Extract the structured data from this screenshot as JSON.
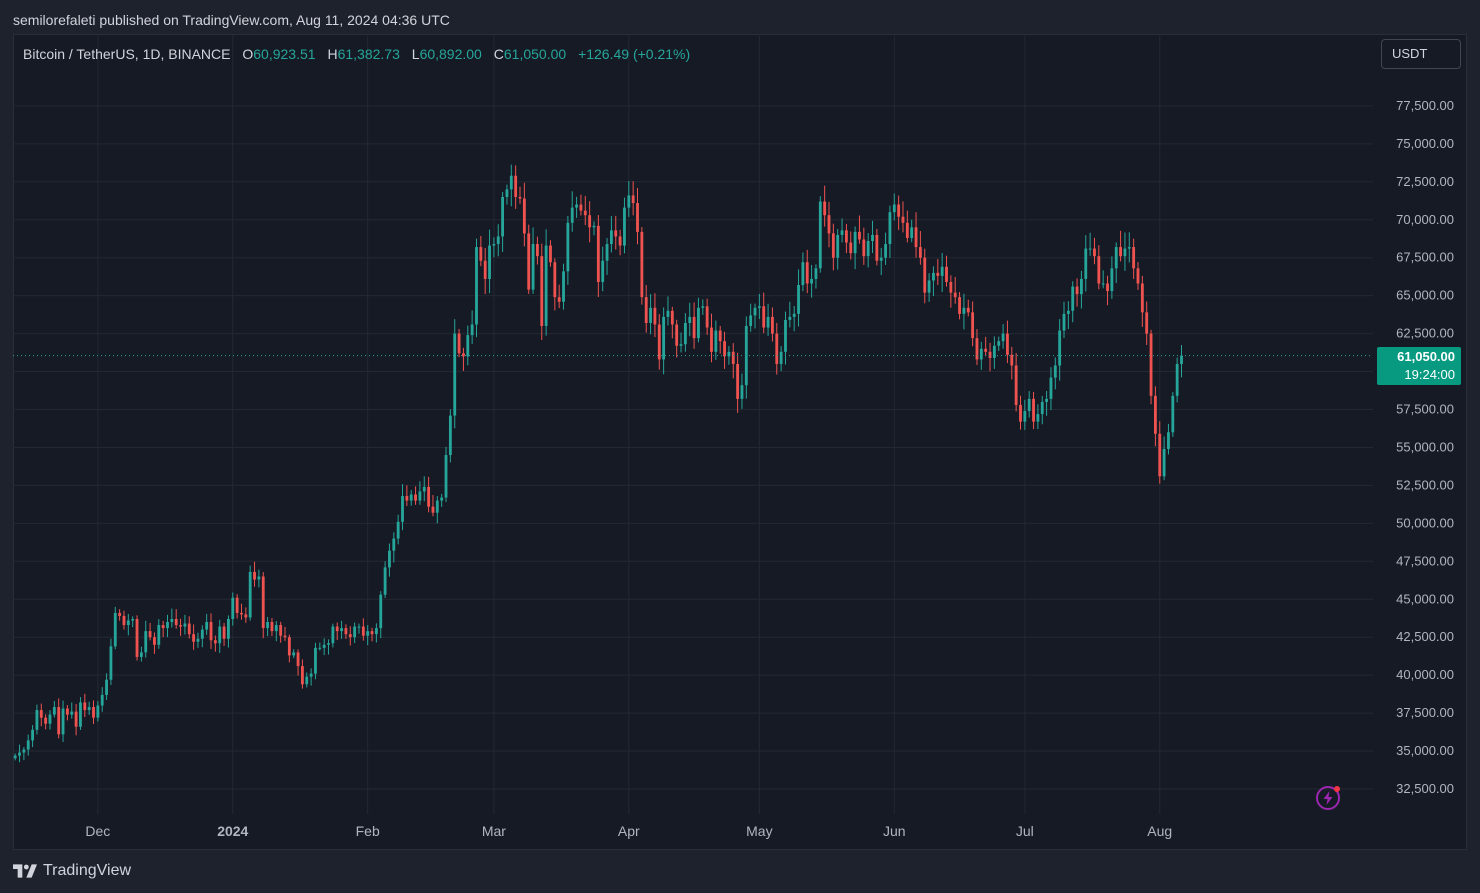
{
  "publisher_line": "semilorefaleti published on TradingView.com, Aug 11, 2024 04:36 UTC",
  "legend": {
    "symbol": "Bitcoin / TetherUS, 1D, BINANCE",
    "open_label": "O",
    "open": "60,923.51",
    "high_label": "H",
    "high": "61,382.73",
    "low_label": "L",
    "low": "60,892.00",
    "close_label": "C",
    "close": "61,050.00",
    "change": "+126.49 (+0.21%)"
  },
  "currency_button": "USDT",
  "last_price": {
    "price": "61,050.00",
    "countdown": "19:24:00",
    "color": "#089981"
  },
  "footer": {
    "brand": "TradingView",
    "logo_icon": "tradingview-logo-icon"
  },
  "badge_icon": "lightning-bolt-icon",
  "colors": {
    "up": "#26a69a",
    "down": "#ef5350",
    "background": "#161a25",
    "grid": "#242833",
    "text": "#b2b5be"
  },
  "chart_data": {
    "type": "candlestick",
    "title": "Bitcoin / TetherUS, 1D, BINANCE",
    "ylim": [
      30500,
      80000
    ],
    "y_ticks": [
      "77,500.00",
      "75,000.00",
      "72,500.00",
      "70,000.00",
      "67,500.00",
      "65,000.00",
      "62,500.00",
      "57,500.00",
      "55,000.00",
      "52,500.00",
      "50,000.00",
      "47,500.00",
      "45,000.00",
      "42,500.00",
      "40,000.00",
      "37,500.00",
      "35,000.00",
      "32,500.00"
    ],
    "y_tick_values": [
      77500,
      75000,
      72500,
      70000,
      67500,
      65000,
      62500,
      57500,
      55000,
      52500,
      50000,
      47500,
      45000,
      42500,
      40000,
      37500,
      35000,
      32500
    ],
    "x_ticks": [
      {
        "label": "Dec",
        "index": 19,
        "bold": false
      },
      {
        "label": "2024",
        "index": 50,
        "bold": true
      },
      {
        "label": "Feb",
        "index": 81,
        "bold": false
      },
      {
        "label": "Mar",
        "index": 110,
        "bold": false
      },
      {
        "label": "Apr",
        "index": 141,
        "bold": false
      },
      {
        "label": "May",
        "index": 171,
        "bold": false
      },
      {
        "label": "Jun",
        "index": 202,
        "bold": false
      },
      {
        "label": "Jul",
        "index": 232,
        "bold": false
      },
      {
        "label": "Aug",
        "index": 263,
        "bold": false
      }
    ],
    "x_range": [
      -0.5,
      312
    ],
    "closes": [
      34700,
      34900,
      35100,
      35700,
      36400,
      37700,
      37200,
      36800,
      37400,
      37900,
      36100,
      37800,
      37400,
      37600,
      36600,
      38200,
      37700,
      37900,
      37200,
      38000,
      38700,
      39700,
      41900,
      44100,
      43900,
      43300,
      43600,
      43700,
      41200,
      41500,
      42900,
      42500,
      42000,
      43300,
      43100,
      43500,
      43700,
      43300,
      43200,
      43400,
      42700,
      42200,
      42400,
      43000,
      43500,
      42300,
      42100,
      43200,
      42400,
      43700,
      45100,
      44100,
      44000,
      43800,
      46800,
      46300,
      46500,
      43100,
      43500,
      42900,
      43300,
      42600,
      42500,
      41300,
      41500,
      40600,
      39400,
      39900,
      40100,
      41800,
      41800,
      42000,
      42100,
      43200,
      42900,
      43100,
      42700,
      42500,
      43200,
      43200,
      42600,
      42900,
      42700,
      43100,
      45300,
      47100,
      48200,
      49000,
      50100,
      51800,
      51500,
      51900,
      51500,
      52100,
      52400,
      51100,
      50700,
      51500,
      51700,
      54500,
      57100,
      62500,
      61200,
      61000,
      62400,
      63100,
      68200,
      67300,
      66100,
      68300,
      68400,
      68900,
      71500,
      72000,
      72900,
      71500,
      71400,
      69100,
      65400,
      68400,
      67600,
      63000,
      68300,
      67200,
      64900,
      64600,
      66600,
      69800,
      70800,
      71000,
      70600,
      70300,
      69500,
      69600,
      65900,
      67300,
      68400,
      69300,
      68900,
      68300,
      70800,
      71600,
      71100,
      69200,
      64900,
      63200,
      64200,
      63100,
      60800,
      63600,
      64000,
      63100,
      61700,
      61800,
      63200,
      63600,
      62200,
      64200,
      64300,
      62900,
      61300,
      62700,
      62000,
      61000,
      61300,
      60500,
      58200,
      59100,
      63000,
      63700,
      64200,
      64300,
      62900,
      63600,
      62500,
      60500,
      61300,
      63400,
      63600,
      63800,
      65700,
      67200,
      65800,
      66100,
      66800,
      71200,
      70300,
      69100,
      67500,
      69000,
      69300,
      68500,
      67800,
      69200,
      68700,
      67600,
      68600,
      69000,
      67300,
      67500,
      68400,
      70500,
      71000,
      70200,
      69800,
      68800,
      69500,
      68200,
      67500,
      65200,
      66000,
      66500,
      66300,
      66900,
      65900,
      65200,
      64900,
      63800,
      64200,
      63900,
      62200,
      60800,
      61500,
      61300,
      60900,
      61700,
      62000,
      62500,
      61100,
      60400,
      57800,
      56700,
      57400,
      58200,
      56700,
      57200,
      58000,
      58200,
      59600,
      60400,
      62700,
      63800,
      64000,
      65600,
      65100,
      66100,
      68100,
      68100,
      67600,
      65800,
      65800,
      65300,
      66800,
      68200,
      67600,
      68100,
      68200,
      66800,
      65800,
      63900,
      62500,
      58400,
      55900,
      53100,
      54900,
      56000,
      58400,
      60500,
      61050
    ],
    "note_last_visible_date": "2024-08-11"
  }
}
